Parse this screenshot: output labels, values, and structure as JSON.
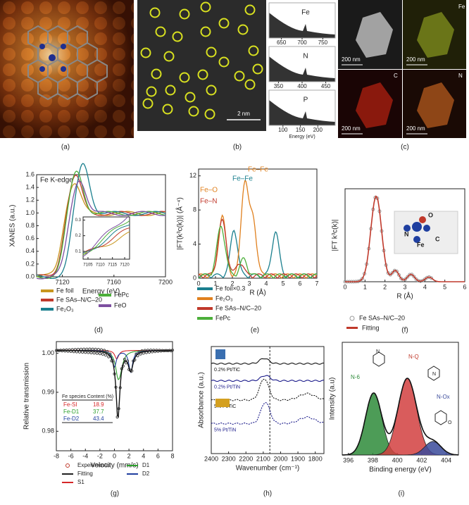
{
  "panels": {
    "a": {
      "label": "(a)"
    },
    "b": {
      "label": "(b)",
      "scale_bar": "2 nm",
      "xlabel": "Energy (eV)",
      "spectra": [
        {
          "element": "Fe",
          "xlim": [
            620,
            780
          ],
          "xticks": [
            650,
            700,
            750
          ]
        },
        {
          "element": "N",
          "xlim": [
            330,
            470
          ],
          "xticks": [
            350,
            400,
            450
          ]
        },
        {
          "element": "P",
          "xlim": [
            60,
            250
          ],
          "xticks": [
            100,
            150,
            200
          ]
        }
      ]
    },
    "c": {
      "label": "(c)",
      "maps": [
        {
          "scale_bar": "200 nm"
        },
        {
          "scale_bar": "200 nm",
          "element": "Fe"
        },
        {
          "scale_bar": "200 nm",
          "element": "C"
        },
        {
          "scale_bar": "200 nm",
          "element": "N"
        }
      ]
    },
    "d": {
      "label": "(d)",
      "title": "Fe K-edge",
      "xlabel": "Energy (eV)",
      "ylabel": "XANES (a.u.)",
      "xlim": [
        7100,
        7200
      ],
      "xticks": [
        7120,
        7160,
        7200
      ],
      "ylim": [
        0,
        1.6
      ],
      "yticks": [
        {
          "value": 0,
          "label": "0.0"
        },
        0.2,
        0.4,
        0.6,
        0.8,
        {
          "value": 1,
          "label": "1.0"
        },
        1.2,
        1.4,
        1.6
      ],
      "inset": {
        "xlim": [
          7103,
          7122
        ],
        "xticks": [
          7105,
          7110,
          7115,
          7120
        ],
        "ylim": [
          0.05,
          0.32
        ],
        "yticks": [
          0.1,
          0.2,
          0.3
        ]
      },
      "legend": [
        {
          "name": "Fe foil",
          "color": "#c8961e"
        },
        {
          "name": "Fe SAs–N/C–20",
          "color": "#c0392b"
        },
        {
          "name": "Fe₂O₃",
          "color": "#1a7f8e"
        },
        {
          "name": "FePc",
          "color": "#4caf3a"
        },
        {
          "name": "FeO",
          "color": "#7d4fa0"
        }
      ]
    },
    "e": {
      "label": "(e)",
      "xlabel": "R (Å)",
      "ylabel": "|FT(k³c(k))| (Å⁻⁴)",
      "xlim": [
        0,
        7
      ],
      "xticks": [
        0,
        1,
        2,
        3,
        4,
        5,
        6,
        7
      ],
      "ylim": [
        0,
        12.8
      ],
      "yticks": [
        0,
        4,
        8,
        12
      ],
      "annotations": [
        {
          "text": "Fe–Fe",
          "color": "#e0801e"
        },
        {
          "text": "Fe–Fe",
          "color": "#1a7f8e"
        },
        {
          "text": "Fe–O",
          "color": "#e0801e"
        },
        {
          "text": "Fe–N",
          "color": "#c0392b"
        }
      ],
      "legend": [
        {
          "name": "Fe foil×0.3",
          "color": "#1a7f8e"
        },
        {
          "name": "Fe₂O₃",
          "color": "#e0801e"
        },
        {
          "name": "Fe SAs–N/C–20",
          "color": "#c0392b"
        },
        {
          "name": "FePc",
          "color": "#4caf3a"
        }
      ]
    },
    "f": {
      "label": "(f)",
      "xlabel": "R (Å)",
      "ylabel": "|FT k³c(k)|",
      "xlim": [
        0,
        6
      ],
      "xticks": [
        0,
        1,
        2,
        3,
        4,
        5,
        6
      ],
      "atoms": [
        "N",
        "Fe",
        "C",
        "O"
      ],
      "legend": [
        {
          "name": "Fe SAs–N/C–20",
          "color": "#999999"
        },
        {
          "name": "Fitting",
          "color": "#c0392b"
        }
      ]
    },
    "g": {
      "label": "(g)",
      "xlabel": "Velocity (mm/s)",
      "ylabel": "Relative transmission",
      "xlim": [
        -8,
        8
      ],
      "xticks": [
        -8,
        -6,
        -4,
        -2,
        0,
        2,
        4,
        6,
        8
      ],
      "ylim": [
        0.975,
        1.003
      ],
      "yticks": [
        0.98,
        0.99,
        {
          "value": 1,
          "label": "1.00"
        }
      ],
      "table": {
        "header": "Fe species Content (%)",
        "rows": [
          [
            "Fe-SI",
            "18.9"
          ],
          [
            "Fe-D1",
            "37.7"
          ],
          [
            "Fe-D2",
            "43.4"
          ]
        ]
      },
      "legend": [
        {
          "name": "Experimental",
          "color": "#c0392b"
        },
        {
          "name": "Fitting",
          "color": "#222222"
        },
        {
          "name": "S1",
          "color": "#d62728"
        },
        {
          "name": "D1",
          "color": "#2ca02c"
        },
        {
          "name": "D2",
          "color": "#1f3f9f"
        }
      ]
    },
    "h": {
      "label": "(h)",
      "xlabel": "Wavenumber (cm⁻¹)",
      "ylabel": "Absorbance (a.u.)",
      "xlim": [
        2400,
        1750
      ],
      "xticks": [
        2400,
        2300,
        2200,
        2100,
        2000,
        1900,
        1800
      ],
      "traces": [
        "0.2% Pt/TiC",
        "0.2% Pt/TiN",
        "5% Pt/TiC",
        "5% Pt/TiN"
      ]
    },
    "i": {
      "label": "(i)",
      "xlabel": "Binding energy (eV)",
      "ylabel": "Intensity (a.u)",
      "xlim": [
        395.5,
        405
      ],
      "xticks": [
        396,
        398,
        400,
        402,
        404
      ],
      "components": [
        "N-6",
        "N-Q",
        "N-Ox"
      ],
      "atoms": [
        "N",
        "N",
        "O"
      ]
    }
  }
}
